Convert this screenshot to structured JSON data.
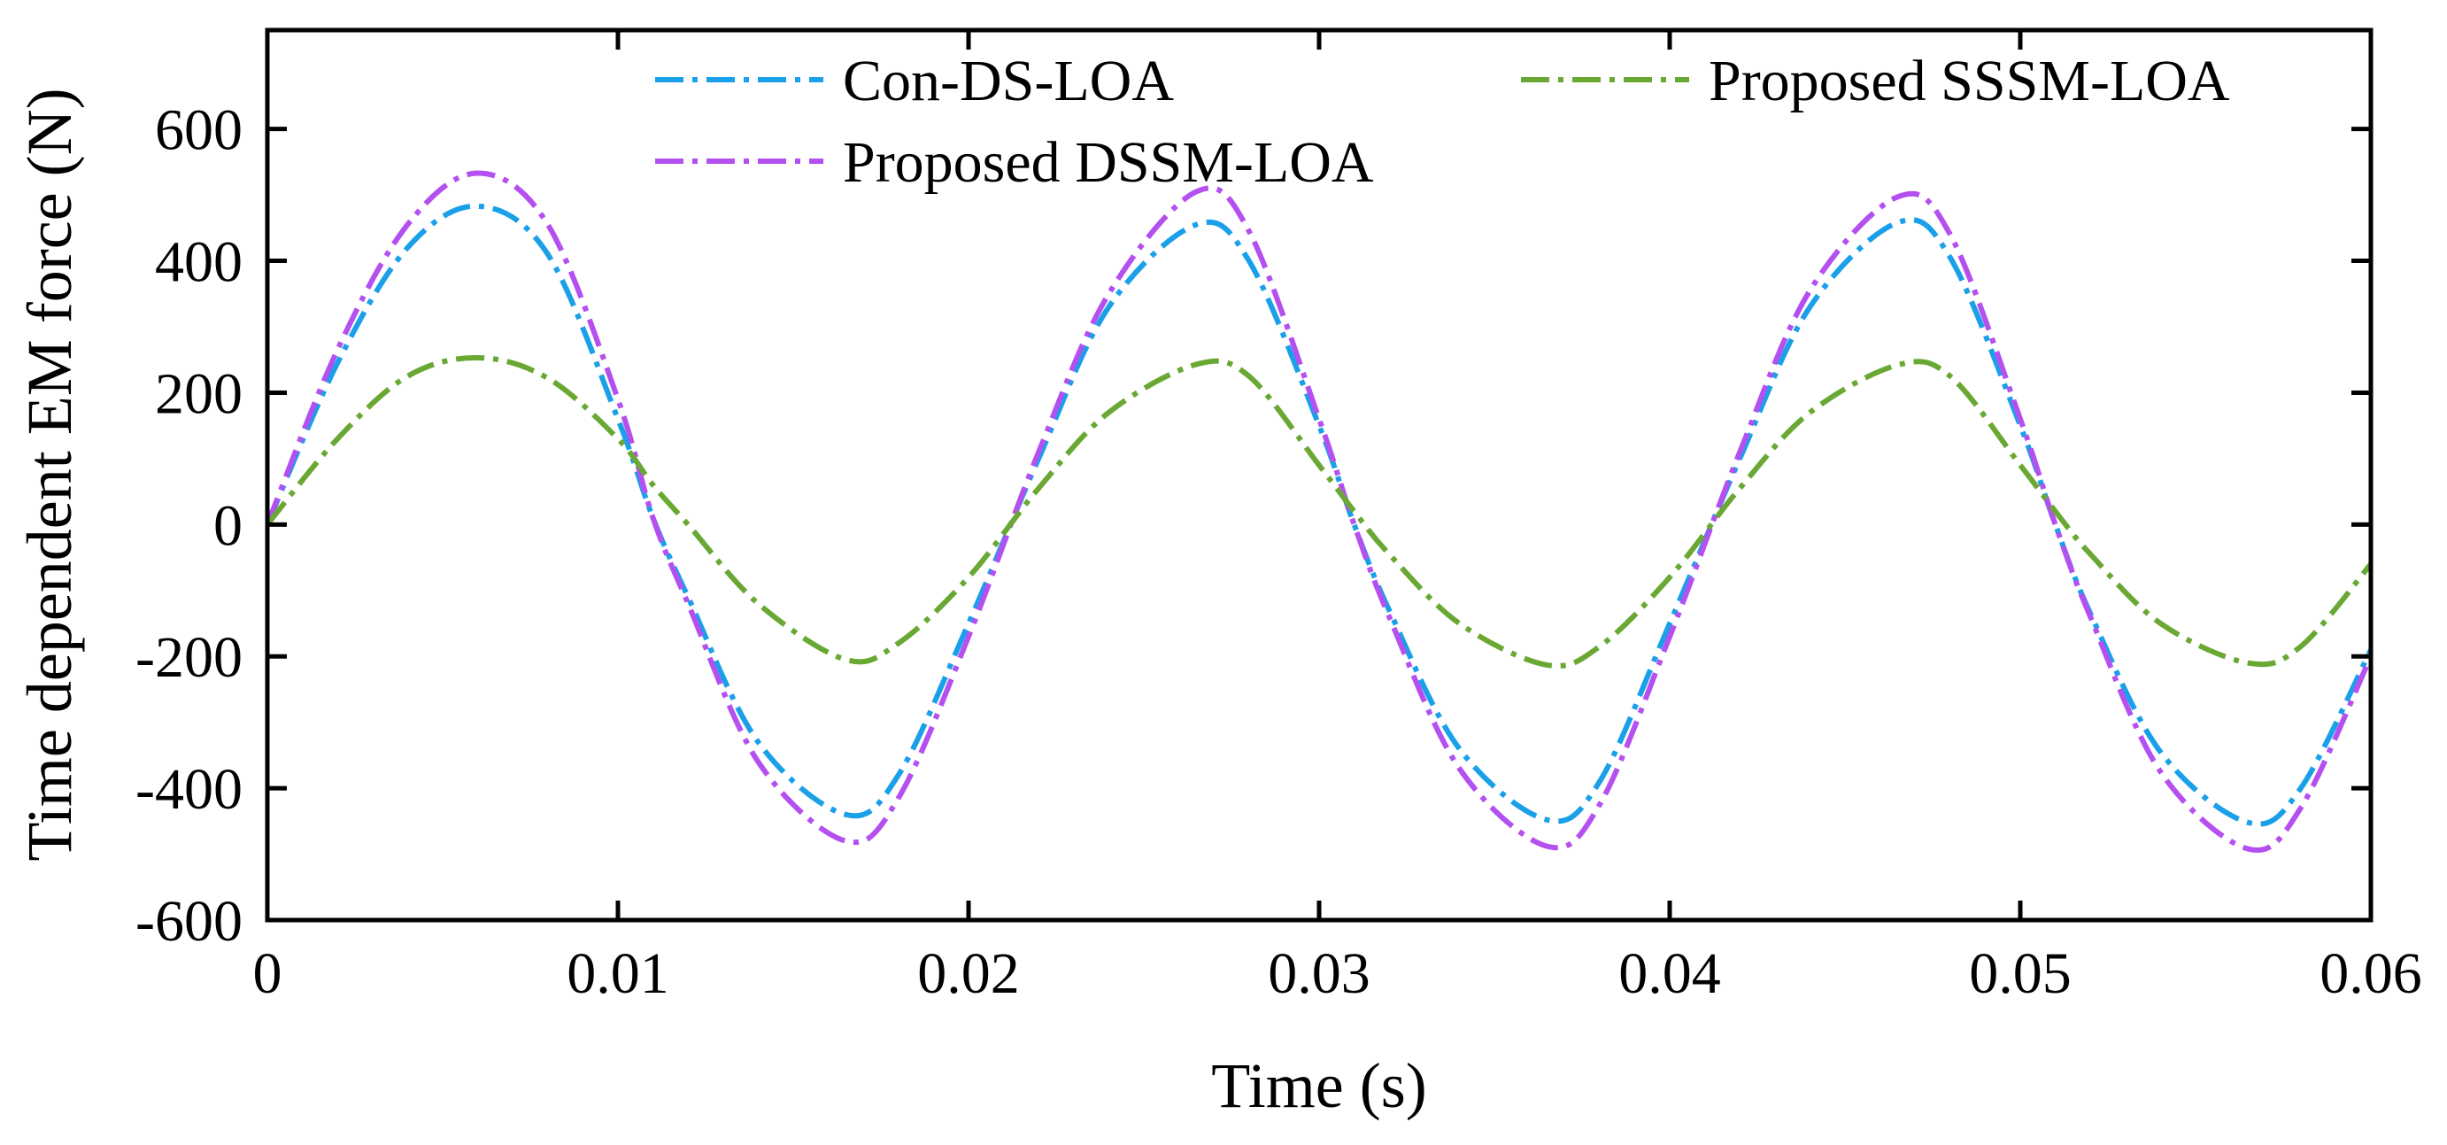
{
  "chart_data": {
    "type": "line",
    "title": "",
    "xlabel": "Time (s)",
    "ylabel": "Time dependent EM force (N)",
    "xlim": [
      0,
      0.06
    ],
    "ylim": [
      -600,
      750
    ],
    "xticks": [
      0,
      0.01,
      0.02,
      0.03,
      0.04,
      0.05,
      0.06
    ],
    "xtick_labels": [
      "0",
      "0.01",
      "0.02",
      "0.03",
      "0.04",
      "0.05",
      "0.06"
    ],
    "yticks": [
      -600,
      -400,
      -200,
      0,
      200,
      400,
      600
    ],
    "ytick_labels": [
      "-600",
      "-400",
      "-200",
      "0",
      "200",
      "400",
      "600"
    ],
    "grid": false,
    "legend_position": "top",
    "x": [
      0,
      0.002,
      0.004,
      0.006,
      0.008,
      0.01,
      0.011,
      0.012,
      0.014,
      0.0165,
      0.018,
      0.02,
      0.022,
      0.024,
      0.0265,
      0.028,
      0.03,
      0.031,
      0.032,
      0.034,
      0.0365,
      0.038,
      0.04,
      0.042,
      0.044,
      0.0465,
      0.048,
      0.05,
      0.051,
      0.052,
      0.054,
      0.0565,
      0.058,
      0.06
    ],
    "series": [
      {
        "name": "Con-DS-LOA",
        "color": "#1aa0e8",
        "values": [
          0,
          245,
          420,
          483,
          410,
          160,
          10,
          -110,
          -330,
          -440,
          -380,
          -150,
          100,
          330,
          455,
          400,
          150,
          0,
          -130,
          -340,
          -448,
          -390,
          -150,
          100,
          330,
          458,
          405,
          150,
          0,
          -135,
          -345,
          -452,
          -400,
          -190
        ]
      },
      {
        "name": "Proposed DSSM-LOA",
        "color": "#b44ff0",
        "values": [
          0,
          265,
          455,
          533,
          455,
          190,
          10,
          -120,
          -360,
          -480,
          -415,
          -170,
          110,
          350,
          505,
          445,
          160,
          0,
          -140,
          -370,
          -488,
          -425,
          -170,
          110,
          355,
          497,
          440,
          160,
          0,
          -140,
          -375,
          -492,
          -430,
          -200
        ]
      },
      {
        "name": "Proposed SSSM-LOA",
        "color": "#6aa834",
        "values": [
          0,
          130,
          225,
          253,
          222,
          130,
          60,
          0,
          -120,
          -205,
          -180,
          -80,
          55,
          170,
          243,
          225,
          90,
          20,
          -45,
          -150,
          -213,
          -185,
          -80,
          55,
          170,
          242,
          225,
          90,
          20,
          -45,
          -150,
          -210,
          -185,
          -60
        ]
      }
    ]
  }
}
